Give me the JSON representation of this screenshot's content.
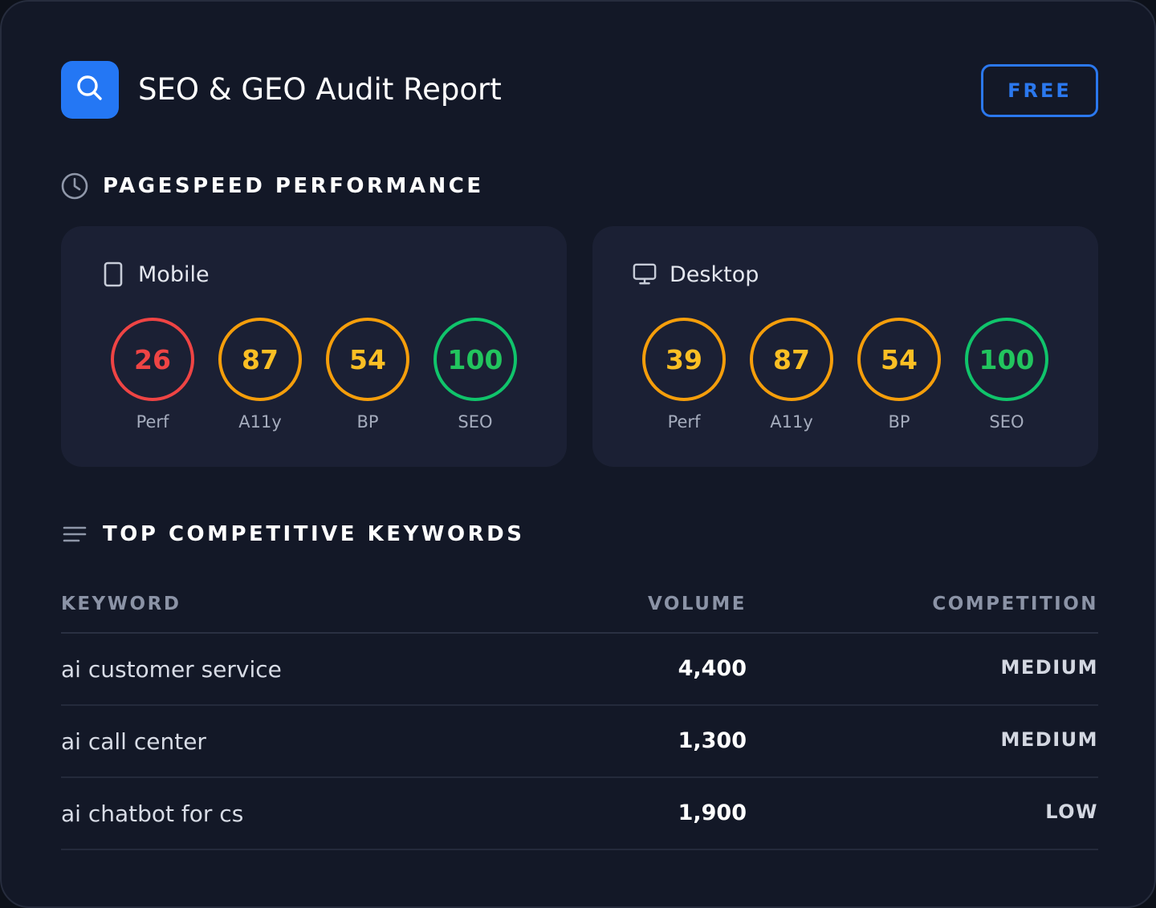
{
  "header": {
    "title": "SEO & GEO Audit Report",
    "logo_icon": "search-icon",
    "plan_badge": "FREE"
  },
  "colors": {
    "accent": "#2477f4",
    "score_poor": "#ef4444",
    "score_average": "#f59e0b",
    "score_good": "#10c46b",
    "score_average_text": "#fbbf24",
    "score_good_text": "#22c55e"
  },
  "pagespeed": {
    "title": "PAGESPEED PERFORMANCE",
    "icon": "clock-icon",
    "devices": [
      {
        "name": "Mobile",
        "icon": "smartphone-icon",
        "scores": [
          {
            "label": "Perf",
            "value": "26",
            "rating": "poor"
          },
          {
            "label": "A11y",
            "value": "87",
            "rating": "average"
          },
          {
            "label": "BP",
            "value": "54",
            "rating": "average"
          },
          {
            "label": "SEO",
            "value": "100",
            "rating": "good"
          }
        ]
      },
      {
        "name": "Desktop",
        "icon": "monitor-icon",
        "scores": [
          {
            "label": "Perf",
            "value": "39",
            "rating": "average"
          },
          {
            "label": "A11y",
            "value": "87",
            "rating": "average"
          },
          {
            "label": "BP",
            "value": "54",
            "rating": "average"
          },
          {
            "label": "SEO",
            "value": "100",
            "rating": "good"
          }
        ]
      }
    ]
  },
  "keywords": {
    "title": "TOP COMPETITIVE KEYWORDS",
    "icon": "list-icon",
    "columns": {
      "keyword": "KEYWORD",
      "volume": "VOLUME",
      "competition": "COMPETITION"
    },
    "rows": [
      {
        "keyword": "ai customer service",
        "volume": "4,400",
        "competition": "MEDIUM"
      },
      {
        "keyword": "ai call center",
        "volume": "1,300",
        "competition": "MEDIUM"
      },
      {
        "keyword": "ai chatbot for cs",
        "volume": "1,900",
        "competition": "LOW"
      }
    ]
  }
}
